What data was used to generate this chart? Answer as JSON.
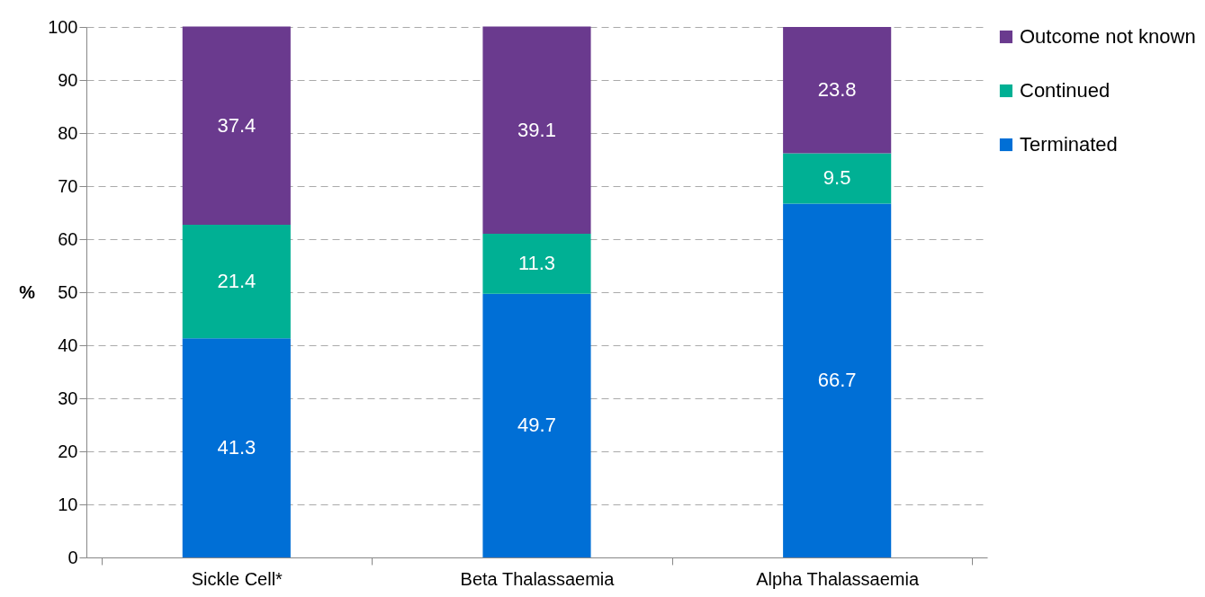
{
  "chart_data": {
    "type": "bar",
    "stacked": true,
    "ylabel": "%",
    "categories": [
      "Sickle Cell*",
      "Beta Thalassaemia",
      "Alpha Thalassaemia"
    ],
    "series": [
      {
        "name": "Terminated",
        "color": "#006fd6",
        "values": [
          41.3,
          49.7,
          66.7
        ]
      },
      {
        "name": "Continued",
        "color": "#00b094",
        "values": [
          21.4,
          11.3,
          9.5
        ]
      },
      {
        "name": "Outcome not known",
        "color": "#6a3a8e",
        "values": [
          37.4,
          39.1,
          23.8
        ]
      }
    ],
    "ylim": [
      0,
      100
    ],
    "yticks": [
      0,
      10,
      20,
      30,
      40,
      50,
      60,
      70,
      80,
      90,
      100
    ],
    "grid": "y",
    "legend": "right",
    "data_labels": true
  }
}
